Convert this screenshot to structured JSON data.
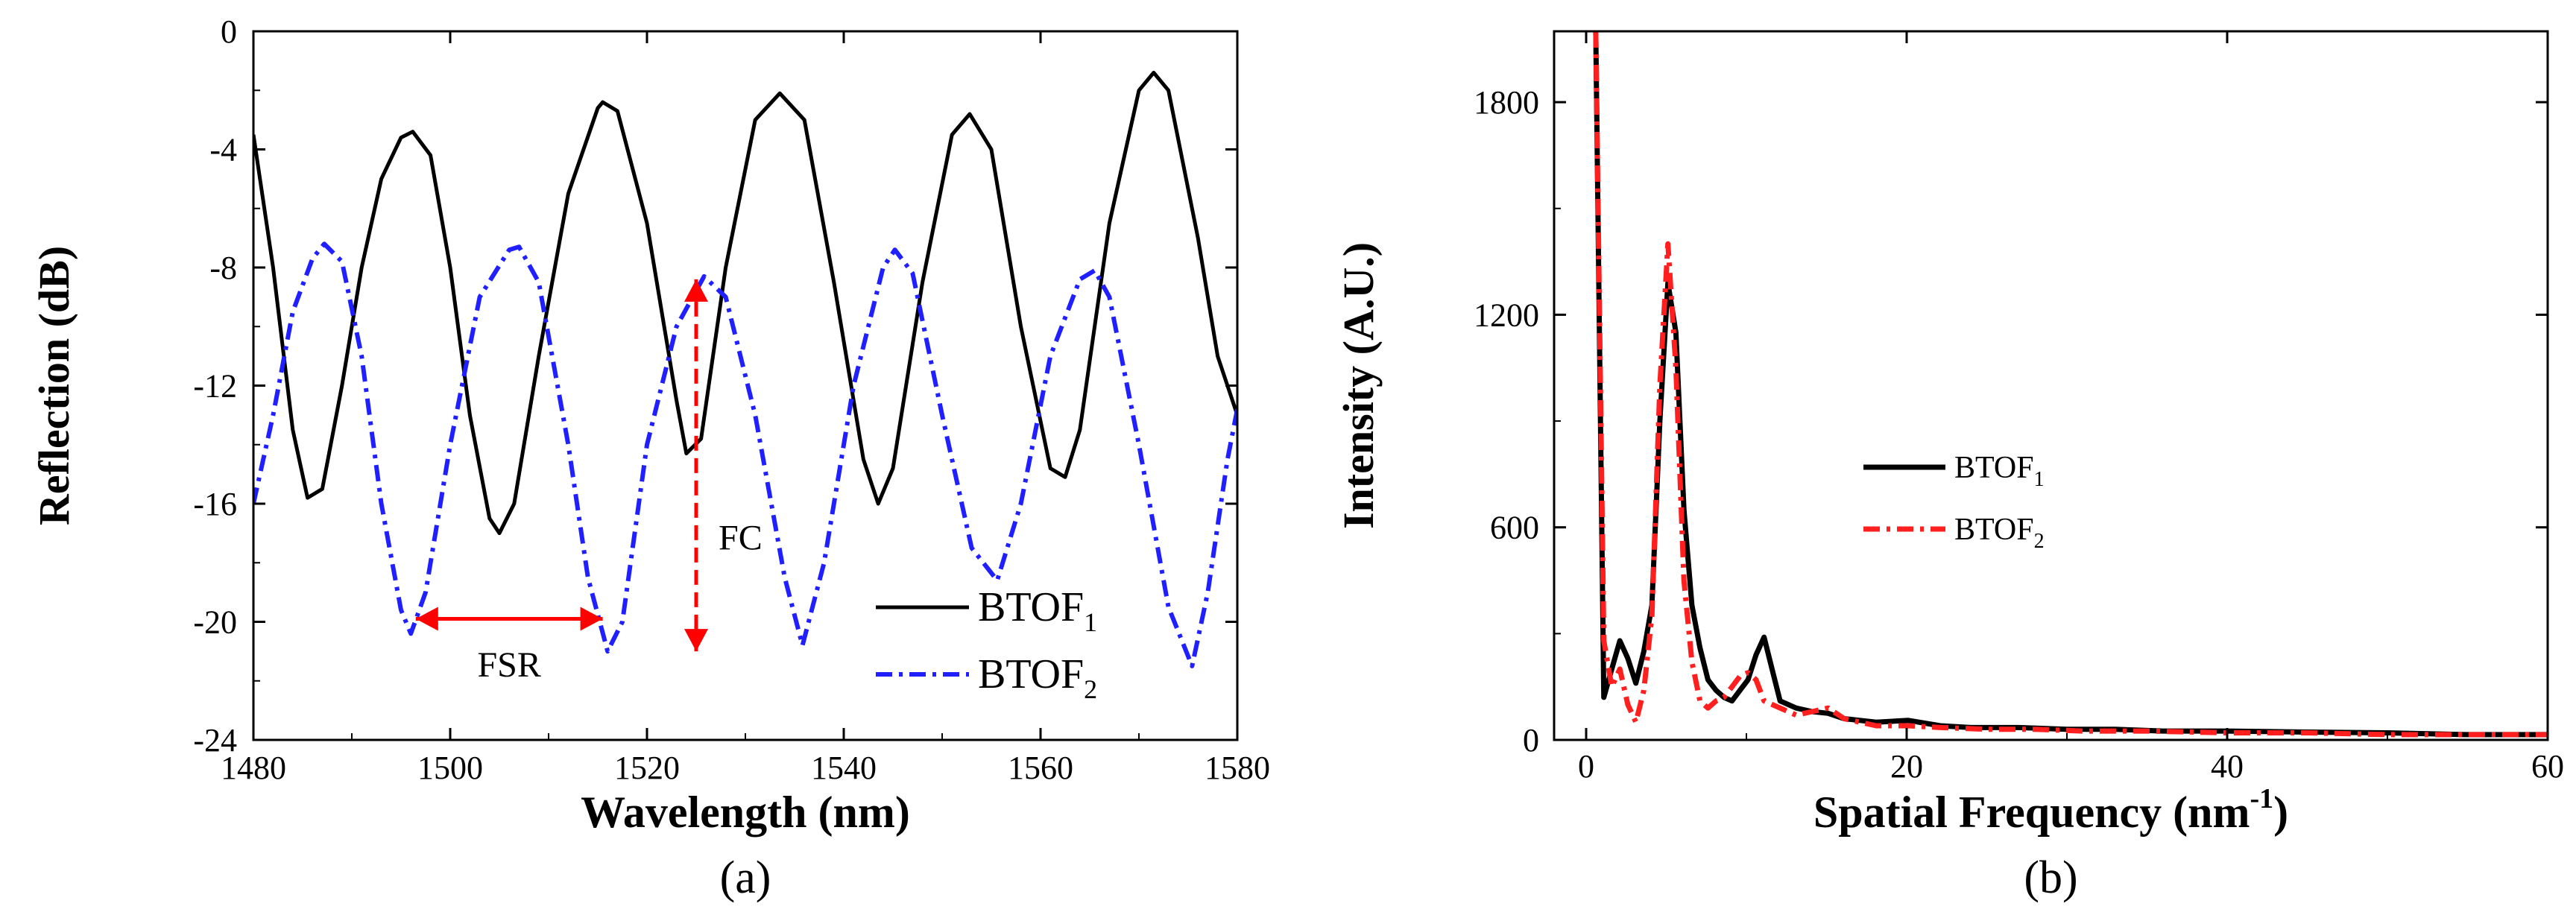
{
  "chart_data": [
    {
      "type": "line",
      "panel_label": "(a)",
      "title": "",
      "xlabel": "Wavelength (nm)",
      "ylabel": "Reflection  (dB)",
      "xlim": [
        1480,
        1580
      ],
      "ylim": [
        -24,
        0
      ],
      "xticks": [
        1480,
        1500,
        1520,
        1540,
        1560,
        1580
      ],
      "yticks": [
        0,
        -4,
        -8,
        -12,
        -16,
        -20,
        -24
      ],
      "legend": {
        "placement": "bottom-right"
      },
      "series": [
        {
          "name": "BTOF",
          "subscript": "1",
          "color": "#000000",
          "style": "solid",
          "x": [
            1480,
            1482,
            1484,
            1485.5,
            1487,
            1489,
            1491,
            1493,
            1495,
            1496.2,
            1498,
            1500,
            1502,
            1504,
            1505,
            1506.5,
            1509,
            1512,
            1515,
            1515.5,
            1517,
            1520,
            1523,
            1524,
            1525.5,
            1528,
            1531,
            1533.5,
            1536,
            1539,
            1542,
            1543.5,
            1545,
            1548,
            1551,
            1552.8,
            1555,
            1558,
            1561,
            1562.5,
            1564,
            1567,
            1570,
            1571.5,
            1573,
            1576,
            1578,
            1580
          ],
          "y": [
            -3.5,
            -8,
            -13.5,
            -15.8,
            -15.5,
            -12,
            -8,
            -5,
            -3.6,
            -3.4,
            -4.2,
            -8,
            -13,
            -16.5,
            -17,
            -16,
            -11,
            -5.5,
            -2.6,
            -2.4,
            -2.7,
            -6.5,
            -12.5,
            -14.3,
            -13.8,
            -8,
            -3,
            -2.1,
            -3,
            -8.5,
            -14.5,
            -16,
            -14.8,
            -8.5,
            -3.5,
            -2.8,
            -4,
            -10,
            -14.8,
            -15.1,
            -13.5,
            -6.5,
            -2,
            -1.4,
            -2,
            -7,
            -11,
            -13
          ]
        },
        {
          "name": "BTOF",
          "subscript": "2",
          "color": "#1f1fff",
          "style": "dash-dot",
          "x": [
            1480,
            1482,
            1484,
            1486,
            1487.2,
            1489,
            1491,
            1493,
            1495,
            1496,
            1497.5,
            1500,
            1503,
            1506,
            1507,
            1509,
            1512,
            1514,
            1516,
            1517.5,
            1520,
            1523,
            1525.8,
            1528,
            1531,
            1534,
            1535.8,
            1538,
            1541,
            1544,
            1545.2,
            1547,
            1550,
            1553,
            1555.6,
            1558,
            1561,
            1564,
            1565.5,
            1567,
            1570,
            1573,
            1575.4,
            1577,
            1579,
            1580
          ],
          "y": [
            -16,
            -13,
            -9.5,
            -7.7,
            -7.2,
            -7.8,
            -11,
            -16,
            -19.6,
            -20.4,
            -19,
            -14,
            -9,
            -7.4,
            -7.3,
            -8.5,
            -14,
            -18.5,
            -21,
            -20,
            -14,
            -10,
            -8.3,
            -9,
            -13,
            -18.5,
            -20.8,
            -18,
            -12,
            -8,
            -7.4,
            -8.2,
            -13,
            -17.5,
            -18.6,
            -16,
            -11,
            -8.4,
            -8.1,
            -9,
            -14,
            -19.5,
            -21.5,
            -19,
            -14.5,
            -12.8
          ]
        }
      ],
      "annotations": [
        {
          "text": "FSR",
          "from": [
            1496.5,
            -19.9
          ],
          "to": [
            1515.5,
            -19.9
          ],
          "text_at": [
            1506,
            -21.5
          ],
          "color": "#ff0000"
        },
        {
          "text": "FC",
          "from": [
            1525,
            -8.4
          ],
          "to": [
            1525,
            -21
          ],
          "text_at": [
            1529.5,
            -17.2
          ],
          "color": "#ff0000"
        }
      ]
    },
    {
      "type": "line",
      "panel_label": "(b)",
      "title": "",
      "xlabel": "Spatial Frequency (nm",
      "xlabel_sup": "-1",
      "xlabel_end": ")",
      "ylabel": "Intensity (A.U.)",
      "xlim": [
        -2,
        60
      ],
      "ylim": [
        0,
        2000
      ],
      "xticks": [
        0,
        20,
        40,
        60
      ],
      "yticks": [
        0,
        600,
        1200,
        1800
      ],
      "legend": {
        "placement": "center-right"
      },
      "series": [
        {
          "name": "BTOF",
          "subscript": "1",
          "color": "#000000",
          "style": "solid",
          "x": [
            0.6,
            1.1,
            1.6,
            2.1,
            2.6,
            3.1,
            3.6,
            4.1,
            4.6,
            5.1,
            5.6,
            6.1,
            6.6,
            7.1,
            7.6,
            8.1,
            8.6,
            9.1,
            9.6,
            10.1,
            10.6,
            11.1,
            11.6,
            12.1,
            13.1,
            14.1,
            15.1,
            16.1,
            18.1,
            20.1,
            22.1,
            24,
            27,
            30,
            33,
            36,
            40,
            45,
            50,
            55,
            60
          ],
          "y": [
            2000,
            120,
            200,
            280,
            230,
            160,
            250,
            380,
            900,
            1290,
            1150,
            650,
            380,
            260,
            170,
            140,
            120,
            110,
            140,
            170,
            240,
            290,
            200,
            110,
            90,
            80,
            75,
            60,
            50,
            55,
            40,
            35,
            35,
            30,
            30,
            25,
            25,
            22,
            20,
            15,
            15
          ]
        },
        {
          "name": "BTOF",
          "subscript": "2",
          "color": "#ff1f1f",
          "style": "dash-dot",
          "x": [
            0.6,
            1.1,
            1.6,
            2.1,
            2.6,
            3.1,
            3.6,
            4.1,
            4.6,
            5.1,
            5.6,
            6.1,
            6.6,
            7.1,
            7.6,
            8.1,
            8.6,
            9.1,
            9.6,
            10.1,
            10.6,
            11.1,
            12.1,
            13.1,
            14.1,
            15.1,
            16.1,
            18.1,
            20.1,
            22.1,
            25,
            28,
            31,
            35,
            40,
            45,
            50,
            55,
            60
          ],
          "y": [
            2000,
            280,
            150,
            200,
            100,
            50,
            140,
            350,
            1000,
            1400,
            1050,
            450,
            220,
            110,
            90,
            110,
            120,
            150,
            180,
            190,
            170,
            110,
            90,
            70,
            80,
            90,
            60,
            40,
            40,
            35,
            30,
            30,
            25,
            25,
            20,
            20,
            15,
            15,
            15
          ]
        }
      ]
    }
  ]
}
